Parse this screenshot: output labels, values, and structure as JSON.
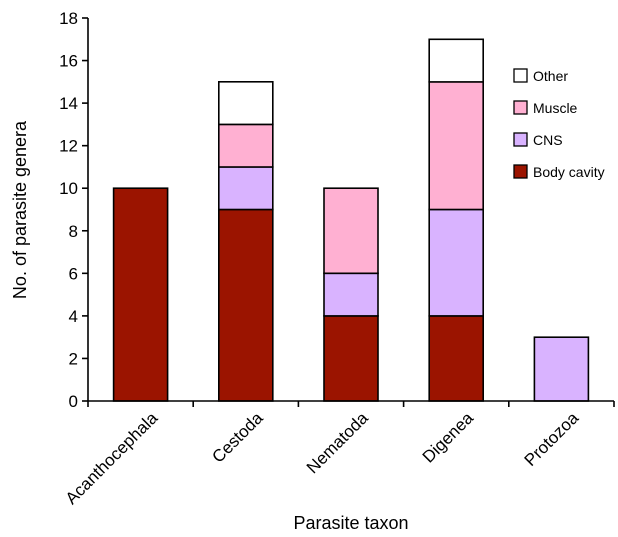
{
  "chart_data": {
    "type": "bar",
    "stacked": true,
    "categories": [
      "Acanthocephala",
      "Cestoda",
      "Nematoda",
      "Digenea",
      "Protozoa"
    ],
    "series": [
      {
        "name": "Body cavity",
        "color": "#9B1400",
        "values": [
          10,
          9,
          4,
          4,
          0
        ]
      },
      {
        "name": "CNS",
        "color": "#D9B3FF",
        "values": [
          0,
          2,
          2,
          5,
          3
        ]
      },
      {
        "name": "Muscle",
        "color": "#FFB0D2",
        "values": [
          0,
          2,
          4,
          6,
          0
        ]
      },
      {
        "name": "Other",
        "color": "#FFFFFF",
        "values": [
          0,
          2,
          0,
          2,
          0
        ]
      }
    ],
    "legend_order": [
      "Other",
      "Muscle",
      "CNS",
      "Body cavity"
    ],
    "legend_position": "right",
    "title": "",
    "xlabel": "Parasite taxon",
    "ylabel": "No. of parasite genera",
    "ylim": [
      0,
      18
    ],
    "yticks": [
      0,
      2,
      4,
      6,
      8,
      10,
      12,
      14,
      16,
      18
    ],
    "grid": false
  }
}
